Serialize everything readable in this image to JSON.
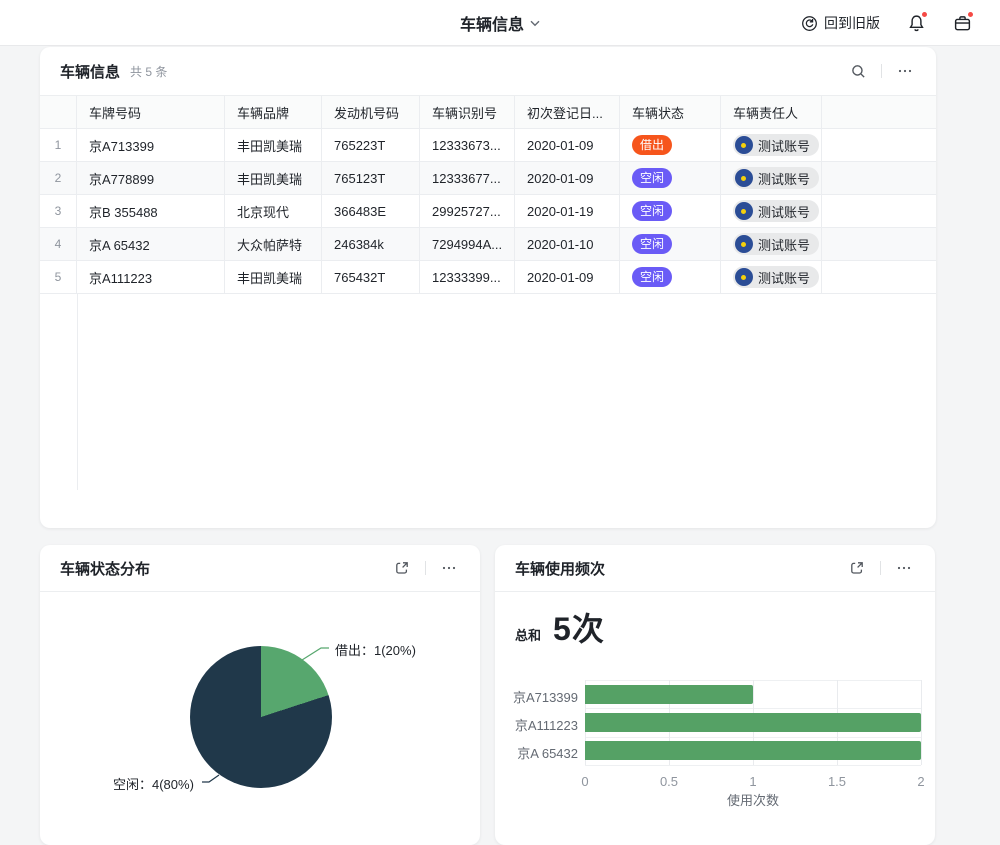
{
  "topbar": {
    "title": "车辆信息",
    "back_to_old": "回到旧版"
  },
  "table_card": {
    "title": "车辆信息",
    "count": "共 5 条",
    "headers": [
      "",
      "车牌号码",
      "车辆品牌",
      "发动机号码",
      "车辆识别号",
      "初次登记日...",
      "车辆状态",
      "车辆责任人",
      ""
    ],
    "rows": [
      {
        "no": "1",
        "plate": "京A713399",
        "brand": "丰田凯美瑞",
        "engine": "765223T",
        "vin": "12333673...",
        "date": "2020-01-09",
        "status": "借出",
        "owner": "测试账号"
      },
      {
        "no": "2",
        "plate": "京A778899",
        "brand": "丰田凯美瑞",
        "engine": "765123T",
        "vin": "12333677...",
        "date": "2020-01-09",
        "status": "空闲",
        "owner": "测试账号"
      },
      {
        "no": "3",
        "plate": "京B 355488",
        "brand": "北京现代",
        "engine": "366483E",
        "vin": "29925727...",
        "date": "2020-01-19",
        "status": "空闲",
        "owner": "测试账号"
      },
      {
        "no": "4",
        "plate": "京A 65432",
        "brand": "大众帕萨特",
        "engine": "246384k",
        "vin": "7294994A...",
        "date": "2020-01-10",
        "status": "空闲",
        "owner": "测试账号"
      },
      {
        "no": "5",
        "plate": "京A111223",
        "brand": "丰田凯美瑞",
        "engine": "765432T",
        "vin": "12333399...",
        "date": "2020-01-09",
        "status": "空闲",
        "owner": "测试账号"
      }
    ],
    "status_colors": {
      "借出": "#f6551c",
      "空闲": "#6a5bf6"
    }
  },
  "pie_card": {
    "title": "车辆状态分布",
    "labels": {
      "borrowed": "借出：1(20%)",
      "idle": "空闲：4(80%)"
    }
  },
  "bar_card": {
    "title": "车辆使用频次",
    "total_label": "总和",
    "total_value": "5次"
  },
  "colors": {
    "pie_borrowed": "#57a76e",
    "pie_idle": "#20384a",
    "bar_green": "#55a165",
    "avatar_blue": "#2b4d96",
    "notification_red": "#f54a45"
  },
  "chart_data": [
    {
      "type": "pie",
      "title": "车辆状态分布",
      "series": [
        {
          "name": "借出",
          "value": 1,
          "pct": 20,
          "color": "#57a76e"
        },
        {
          "name": "空闲",
          "value": 4,
          "pct": 80,
          "color": "#20384a"
        }
      ],
      "legend_position": "callout-labels"
    },
    {
      "type": "bar",
      "orientation": "horizontal",
      "title": "车辆使用频次",
      "categories": [
        "京A713399",
        "京A111223",
        "京A 65432"
      ],
      "values": [
        1,
        2,
        2
      ],
      "xlabel": "使用次数",
      "xlim": [
        0,
        2
      ],
      "xticks": [
        "0",
        "0.5",
        "1",
        "1.5",
        "2"
      ],
      "bar_color": "#55a165",
      "grid": true,
      "total": "5次"
    }
  ]
}
